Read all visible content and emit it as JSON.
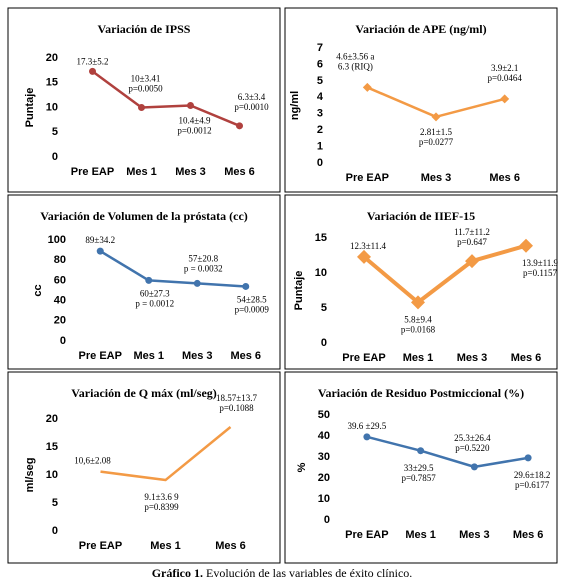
{
  "chart_data": [
    {
      "type": "line",
      "title": "Variación de IPSS",
      "y_label": "Puntaje",
      "categories": [
        "Pre EAP",
        "Mes 1",
        "Mes 3",
        "Mes 6"
      ],
      "values": [
        17.3,
        10,
        10.4,
        6.3
      ],
      "value_labels": [
        [
          "17.3±5.2"
        ],
        [
          "10±3.41",
          "p=0.0050"
        ],
        [
          "10.4±4.9",
          "p=0.0012"
        ],
        [
          "6.3±3.4",
          "p=0.0010"
        ]
      ],
      "color": "#b0413e",
      "marker": "circle",
      "ylim": [
        0,
        20
      ],
      "yticks": [
        0,
        5,
        10,
        15,
        20
      ],
      "grid": false
    },
    {
      "type": "line",
      "title": "Variación de APE (ng/ml)",
      "y_label": "ng/ml",
      "categories": [
        "Pre EAP",
        "Mes 3",
        "Mes 6"
      ],
      "values": [
        4.6,
        2.81,
        3.9
      ],
      "value_labels": [
        [
          "4.6±3.56 a",
          "6.3 (RIQ)"
        ],
        [
          "2.81±1.5",
          "p=0.0277"
        ],
        [
          "3.9±2.1",
          "p=0.0464"
        ]
      ],
      "color": "#f39a45",
      "marker": "diamond",
      "ylim": [
        0,
        7
      ],
      "yticks": [
        0,
        1,
        2,
        3,
        4,
        5,
        6,
        7
      ],
      "grid": false
    },
    {
      "type": "line",
      "title": "Variación de Volumen de la próstata (cc)",
      "y_label": "cc",
      "categories": [
        "Pre EAP",
        "Mes 1",
        "Mes 3",
        "Mes 6"
      ],
      "values": [
        89,
        60,
        57,
        54
      ],
      "value_labels": [
        [
          "89±34.2"
        ],
        [
          "60±27.3",
          "p = 0.0012"
        ],
        [
          "57±20.8",
          "p = 0.0032"
        ],
        [
          "54±28.5",
          "p=0.0009"
        ]
      ],
      "color": "#4174ad",
      "marker": "circle",
      "ylim": [
        0,
        100
      ],
      "yticks": [
        0,
        20,
        40,
        60,
        80,
        100
      ],
      "grid": false
    },
    {
      "type": "line",
      "title": "Variación de IIEF-15",
      "y_label": "Puntaje",
      "categories": [
        "Pre EAP",
        "Mes 1",
        "Mes 3",
        "Mes 6"
      ],
      "values": [
        12.3,
        5.8,
        11.7,
        13.9
      ],
      "value_labels": [
        [
          "12.3±11.4"
        ],
        [
          "5.8±9.4",
          "p=0.0168"
        ],
        [
          "11.7±11.2",
          "p=0.647"
        ],
        [
          "13.9±11.9",
          "p=0.1157"
        ]
      ],
      "color": "#f39a45",
      "marker": "diamond",
      "ylim": [
        0,
        15
      ],
      "yticks": [
        0,
        5,
        10,
        15
      ],
      "grid": false
    },
    {
      "type": "line",
      "title": "Variación de Q máx (ml/seg)",
      "y_label": "ml/seg",
      "categories": [
        "Pre EAP",
        "Mes 1",
        "Mes 6"
      ],
      "values": [
        10.6,
        9.1,
        18.57
      ],
      "value_labels": [
        [
          "10,6±2.08"
        ],
        [
          "9.1±3.6 9",
          "p=0.8399"
        ],
        [
          "18.57±13.7",
          "p=0.1088"
        ]
      ],
      "color": "#f39a45",
      "marker": "none",
      "ylim": [
        0,
        20
      ],
      "yticks": [
        0,
        5,
        10,
        15,
        20
      ],
      "grid": false
    },
    {
      "type": "line",
      "title": "Variación de Residuo Postmiccional (%)",
      "y_label": "%",
      "categories": [
        "Pre EAP",
        "Mes 1",
        "Mes 3",
        "Mes 6"
      ],
      "values": [
        39.6,
        33,
        25.3,
        29.6
      ],
      "value_labels": [
        [
          "39.6 ±29.5"
        ],
        [
          "33±29.5",
          "p=0.7857"
        ],
        [
          "25.3±26.4",
          "p=0.5220"
        ],
        [
          "29.6±18.2",
          "p=0.6177"
        ]
      ],
      "color": "#4174ad",
      "marker": "circle",
      "ylim": [
        0,
        50
      ],
      "yticks": [
        0,
        10,
        20,
        30,
        40,
        50
      ],
      "grid": false
    }
  ],
  "caption": {
    "label": "Gráfico 1.",
    "text": "Evolución de las variables de éxito clínico."
  }
}
